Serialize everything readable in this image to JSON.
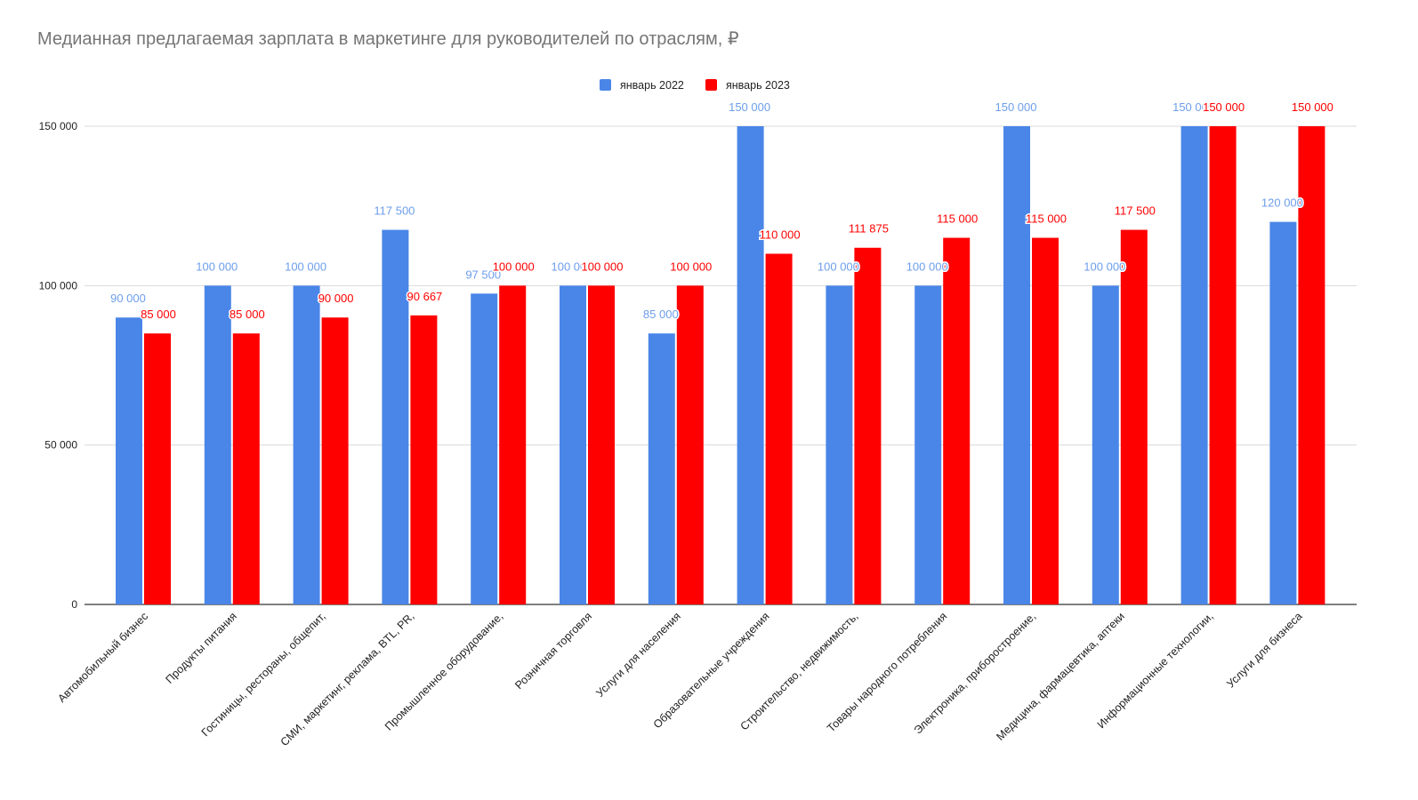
{
  "chart_data": {
    "type": "bar",
    "title": "Медианная предлагаемая зарплата в маркетинге для руководителей по отраслям, ₽",
    "xlabel": "",
    "ylabel": "",
    "ylim": [
      0,
      150000
    ],
    "yticks": [
      0,
      50000,
      100000,
      150000
    ],
    "ytick_labels": [
      "0",
      "50 000",
      "100 000",
      "150 000"
    ],
    "grid": true,
    "legend_position": "top",
    "categories": [
      "Автомобильный бизнес",
      "Продукты питания",
      "Гостиницы, рестораны, общепит,",
      "СМИ, маркетинг, реклама, BTL, PR,",
      "Промышленное оборудование,",
      "Розничная торговля",
      "Услуги для населения",
      "Образовательные учреждения",
      "Строительство, недвижимость,",
      "Товары народного потребления",
      "Электроника, приборостроение,",
      "Медицина, фармацевтика, аптеки",
      "Информационные технологии,",
      "Услуги для бизнеса"
    ],
    "series": [
      {
        "name": "январь 2022",
        "color": "#4a86e8",
        "values": [
          90000,
          100000,
          100000,
          117500,
          97500,
          100000,
          85000,
          150000,
          100000,
          100000,
          150000,
          100000,
          150000,
          120000
        ],
        "labels": [
          "90 000",
          "100 000",
          "100 000",
          "117 500",
          "97 500",
          "100 000",
          "85 000",
          "150 000",
          "100 000",
          "100 000",
          "150 000",
          "100 000",
          "150 000",
          "120 000"
        ]
      },
      {
        "name": "январь 2023",
        "color": "#ff0000",
        "values": [
          85000,
          85000,
          90000,
          90667,
          100000,
          100000,
          100000,
          110000,
          111875,
          115000,
          115000,
          117500,
          150000,
          150000
        ],
        "labels": [
          "85 000",
          "85 000",
          "90 000",
          "90 667",
          "100 000",
          "100 000",
          "100 000",
          "110 000",
          "111 875",
          "115 000",
          "115 000",
          "117 500",
          "150 000",
          "150 000"
        ]
      }
    ]
  }
}
